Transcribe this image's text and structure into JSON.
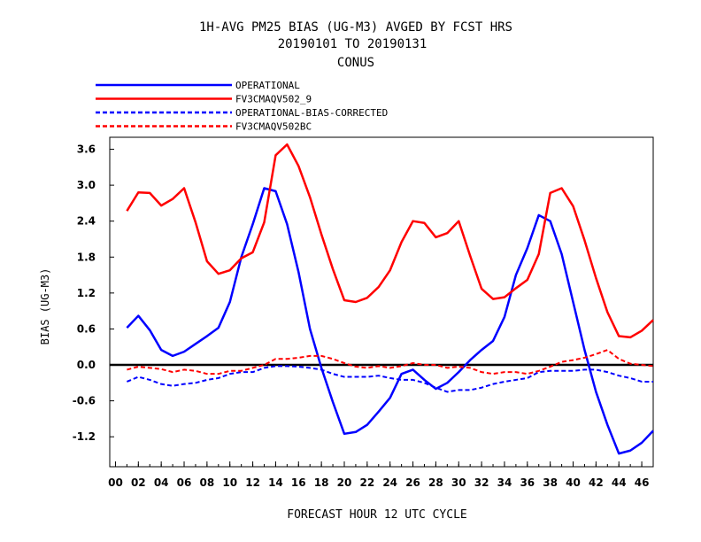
{
  "chart_data": {
    "type": "line",
    "title_lines": [
      "1H-AVG PM25 BIAS (UG-M3)  AVGED BY FCST HRS",
      "20190101 TO 20190131",
      "CONUS"
    ],
    "xlabel": "FORECAST HOUR  12 UTC CYCLE",
    "ylabel": "BIAS (UG-M3)",
    "xlim": [
      -0.5,
      47
    ],
    "ylim": [
      -1.7,
      3.8
    ],
    "xticks": [
      "00",
      "02",
      "04",
      "06",
      "08",
      "10",
      "12",
      "14",
      "16",
      "18",
      "20",
      "22",
      "24",
      "26",
      "28",
      "30",
      "32",
      "34",
      "36",
      "38",
      "40",
      "42",
      "44",
      "46"
    ],
    "yticks": [
      "3.6",
      "3.0",
      "2.4",
      "1.8",
      "1.2",
      "0.6",
      "0.0",
      "-0.6",
      "-1.2"
    ],
    "ytick_values": [
      3.6,
      3.0,
      2.4,
      1.8,
      1.2,
      0.6,
      0.0,
      -0.6,
      -1.2
    ],
    "x": [
      1,
      2,
      3,
      4,
      5,
      6,
      7,
      8,
      9,
      10,
      11,
      12,
      13,
      14,
      15,
      16,
      17,
      18,
      19,
      20,
      21,
      22,
      23,
      24,
      25,
      26,
      27,
      28,
      29,
      30,
      31,
      32,
      33,
      34,
      35,
      36,
      37,
      38,
      39,
      40,
      41,
      42,
      43,
      44,
      45,
      46,
      47
    ],
    "legend_placement": "top-left",
    "series": [
      {
        "name": "OPERATIONAL",
        "color": "#0000ff",
        "dash": "solid",
        "values": [
          0.62,
          0.82,
          0.58,
          0.25,
          0.15,
          0.22,
          0.35,
          0.48,
          0.62,
          1.05,
          1.8,
          2.35,
          2.95,
          2.9,
          2.35,
          1.55,
          0.6,
          -0.05,
          -0.62,
          -1.15,
          -1.12,
          -1.0,
          -0.78,
          -0.55,
          -0.15,
          -0.08,
          -0.25,
          -0.4,
          -0.3,
          -0.12,
          0.08,
          0.25,
          0.4,
          0.8,
          1.5,
          1.95,
          2.5,
          2.4,
          1.85,
          1.05,
          0.25,
          -0.45,
          -1.0,
          -1.48,
          -1.43,
          -1.3,
          -1.1
        ]
      },
      {
        "name": "FV3CMAQV502_9",
        "color": "#ff0000",
        "dash": "solid",
        "values": [
          2.57,
          2.88,
          2.87,
          2.66,
          2.77,
          2.95,
          2.38,
          1.73,
          1.52,
          1.58,
          1.78,
          1.88,
          2.38,
          3.5,
          3.68,
          3.32,
          2.8,
          2.18,
          1.6,
          1.08,
          1.05,
          1.12,
          1.3,
          1.58,
          2.05,
          2.4,
          2.37,
          2.13,
          2.2,
          2.4,
          1.82,
          1.27,
          1.1,
          1.13,
          1.28,
          1.42,
          1.85,
          2.87,
          2.95,
          2.65,
          2.08,
          1.45,
          0.88,
          0.48,
          0.46,
          0.57,
          0.75
        ]
      },
      {
        "name": "OPERATIONAL-BIAS-CORRECTED",
        "color": "#0000ff",
        "dash": "dashed",
        "values": [
          -0.28,
          -0.2,
          -0.25,
          -0.32,
          -0.35,
          -0.32,
          -0.3,
          -0.25,
          -0.22,
          -0.15,
          -0.12,
          -0.12,
          -0.05,
          -0.02,
          -0.02,
          -0.03,
          -0.05,
          -0.08,
          -0.15,
          -0.2,
          -0.2,
          -0.2,
          -0.18,
          -0.22,
          -0.25,
          -0.25,
          -0.3,
          -0.38,
          -0.45,
          -0.42,
          -0.42,
          -0.38,
          -0.32,
          -0.28,
          -0.25,
          -0.22,
          -0.12,
          -0.1,
          -0.1,
          -0.1,
          -0.08,
          -0.08,
          -0.12,
          -0.18,
          -0.22,
          -0.28,
          -0.28
        ]
      },
      {
        "name": "FV3CMAQV502BC",
        "color": "#ff0000",
        "dash": "dashed",
        "values": [
          -0.08,
          -0.03,
          -0.05,
          -0.07,
          -0.12,
          -0.08,
          -0.1,
          -0.15,
          -0.15,
          -0.1,
          -0.1,
          -0.05,
          0.0,
          0.1,
          0.1,
          0.12,
          0.15,
          0.15,
          0.1,
          0.03,
          -0.03,
          -0.05,
          -0.02,
          -0.05,
          -0.02,
          0.03,
          0.0,
          0.0,
          -0.05,
          -0.03,
          -0.05,
          -0.12,
          -0.15,
          -0.12,
          -0.12,
          -0.15,
          -0.1,
          -0.03,
          0.05,
          0.08,
          0.12,
          0.18,
          0.25,
          0.1,
          0.02,
          0.0,
          -0.02
        ]
      }
    ]
  }
}
